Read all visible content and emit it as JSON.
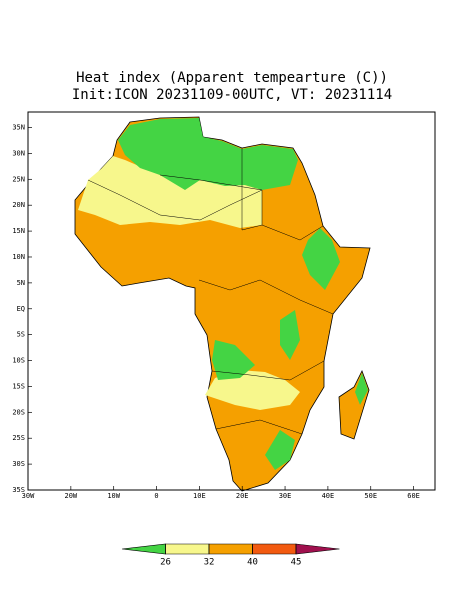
{
  "title": [
    "Heat index (Apparent tempearture (C))",
    "Init:ICON 20231109-00UTC, VT: 20231114"
  ],
  "map": {
    "xlim": [
      -30,
      65
    ],
    "ylim": [
      -35,
      38
    ],
    "xticks": [
      {
        "value": -30,
        "label": "30W"
      },
      {
        "value": -20,
        "label": "20W"
      },
      {
        "value": -10,
        "label": "10W"
      },
      0,
      {
        "value": 10,
        "label": "10E"
      },
      {
        "value": 20,
        "label": "20E"
      },
      {
        "value": 30,
        "label": "30E"
      },
      {
        "value": 40,
        "label": "40E"
      },
      {
        "value": 50,
        "label": "50E"
      },
      {
        "value": 60,
        "label": "60E"
      }
    ],
    "yticks": [
      {
        "value": 35,
        "label": "35N"
      },
      {
        "value": 30,
        "label": "30N"
      },
      {
        "value": 25,
        "label": "25N"
      },
      {
        "value": 20,
        "label": "20N"
      },
      {
        "value": 15,
        "label": "15N"
      },
      {
        "value": 10,
        "label": "10N"
      },
      {
        "value": 5,
        "label": "5N"
      },
      {
        "value": 0,
        "label": "EQ"
      },
      {
        "value": -5,
        "label": "5S"
      },
      {
        "value": -10,
        "label": "10S"
      },
      {
        "value": -15,
        "label": "15S"
      },
      {
        "value": -20,
        "label": "20S"
      },
      {
        "value": -25,
        "label": "25S"
      },
      {
        "value": -30,
        "label": "30S"
      },
      {
        "value": -35,
        "label": "35S"
      }
    ]
  },
  "colorbar": {
    "levels": [
      26,
      32,
      40,
      45
    ],
    "colors": [
      "#44d444",
      "#f7f78c",
      "#f5a000",
      "#f25a10",
      "#a0104e"
    ]
  }
}
